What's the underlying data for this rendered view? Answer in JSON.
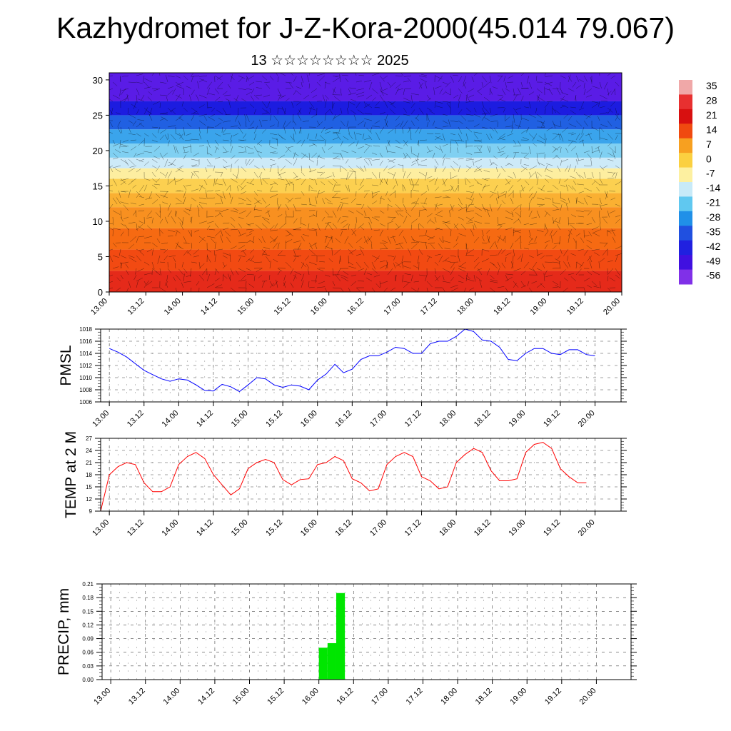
{
  "title": "Kazhydromet for J-Z-Kora-2000(45.014 79.067)",
  "subtitle": "13 ☆☆☆☆☆☆☆☆ 2025",
  "time_ticks": [
    "13.00",
    "13.12",
    "14.00",
    "14.12",
    "15.00",
    "15.12",
    "16.00",
    "16.12",
    "17.00",
    "17.12",
    "18.00",
    "18.12",
    "19.00",
    "19.12",
    "20.00"
  ],
  "chart_data": [
    {
      "type": "heatmap",
      "name": "upper-air temperature cross-section",
      "x_categories": [
        "13.00",
        "13.12",
        "14.00",
        "14.12",
        "15.00",
        "15.12",
        "16.00",
        "16.12",
        "17.00",
        "17.12",
        "18.00",
        "18.12",
        "19.00",
        "19.12",
        "20.00"
      ],
      "y_ticks": [
        0,
        5,
        10,
        15,
        20,
        25,
        30
      ],
      "ylim": [
        0,
        31
      ],
      "colorbar": {
        "labels": [
          "35",
          "28",
          "21",
          "14",
          "7",
          "0",
          "-7",
          "-14",
          "-21",
          "-28",
          "-35",
          "-42",
          "-49",
          "-56"
        ],
        "colors": [
          "#f0a8a8",
          "#e83030",
          "#d81010",
          "#f04a10",
          "#f7a020",
          "#fbd040",
          "#fdf0a0",
          "#c8eaf8",
          "#60c8f0",
          "#2090e8",
          "#2050e0",
          "#2020e0",
          "#4010e0",
          "#8030e8"
        ]
      },
      "bands": [
        {
          "level": 0,
          "color": "#e52a1a"
        },
        {
          "level": 3,
          "color": "#f24a12"
        },
        {
          "level": 6,
          "color": "#f66a12"
        },
        {
          "level": 9,
          "color": "#f89020"
        },
        {
          "level": 12,
          "color": "#fab032"
        },
        {
          "level": 14,
          "color": "#fcd050"
        },
        {
          "level": 16,
          "color": "#fdeea0"
        },
        {
          "level": 17.5,
          "color": "#cdeaf8"
        },
        {
          "level": 19,
          "color": "#80d0f2"
        },
        {
          "level": 21,
          "color": "#3aa4ec"
        },
        {
          "level": 23,
          "color": "#2060e2"
        },
        {
          "level": 25,
          "color": "#1c1ce0"
        },
        {
          "level": 27,
          "color": "#5a1ce6"
        },
        {
          "level": 31,
          "color": "#7a2aea"
        }
      ]
    },
    {
      "type": "line",
      "ylabel": "PMSL",
      "ylim": [
        1006,
        1018
      ],
      "y_ticks": [
        1006,
        1008,
        1010,
        1012,
        1014,
        1016,
        1018
      ],
      "x_ticks": [
        "13.00",
        "13.12",
        "14.00",
        "14.12",
        "15.00",
        "15.12",
        "16.00",
        "16.12",
        "17.00",
        "17.12",
        "18.00",
        "18.12",
        "19.00",
        "19.12",
        "20.00"
      ],
      "x_start_hours": 0,
      "x_step_hours": 3,
      "values": [
        1014.8,
        1014.2,
        1013.4,
        1012.3,
        1011.2,
        1010.5,
        1009.8,
        1009.4,
        1009.8,
        1009.6,
        1008.8,
        1007.9,
        1007.8,
        1008.9,
        1008.5,
        1007.7,
        1008.8,
        1010.0,
        1009.8,
        1008.8,
        1008.4,
        1008.8,
        1008.6,
        1008.0,
        1009.6,
        1010.6,
        1012.2,
        1010.8,
        1011.4,
        1013.0,
        1013.6,
        1013.6,
        1014.2,
        1015.0,
        1014.8,
        1014.0,
        1014.0,
        1015.6,
        1016.0,
        1016.0,
        1016.8,
        1018.0,
        1017.6,
        1016.2,
        1016.0,
        1015.0,
        1013.0,
        1012.8,
        1014.0,
        1014.8,
        1014.8,
        1014.0,
        1013.8,
        1014.6,
        1014.6,
        1013.8,
        1013.6
      ],
      "color": "#0000ff"
    },
    {
      "type": "line",
      "ylabel": "TEMP at 2 M",
      "ylim": [
        9,
        27
      ],
      "y_ticks": [
        9,
        12,
        15,
        18,
        21,
        24,
        27
      ],
      "x_ticks": [
        "13.00",
        "13.12",
        "14.00",
        "14.12",
        "15.00",
        "15.12",
        "16.00",
        "16.12",
        "17.00",
        "17.12",
        "18.00",
        "18.12",
        "19.00",
        "19.12",
        "20.00"
      ],
      "x_start_hours": -3,
      "x_step_hours": 3,
      "values": [
        9.0,
        18.0,
        20.0,
        21.0,
        20.5,
        16.0,
        13.8,
        13.8,
        15.0,
        20.5,
        22.5,
        23.5,
        22.0,
        18.0,
        15.5,
        13.0,
        14.5,
        19.5,
        21.0,
        21.8,
        21.0,
        16.8,
        15.5,
        16.8,
        17.0,
        20.5,
        21.0,
        22.5,
        21.5,
        17.0,
        16.0,
        14.0,
        14.5,
        20.5,
        22.5,
        23.5,
        22.5,
        17.5,
        16.5,
        14.5,
        15.0,
        21.0,
        23.0,
        24.5,
        23.5,
        19.0,
        16.5,
        16.5,
        17.0,
        23.5,
        25.5,
        26.0,
        24.5,
        19.5,
        17.5,
        16.0,
        16.0
      ],
      "color": "#ff0000"
    },
    {
      "type": "bar",
      "ylabel": "PRECIP, mm",
      "ylim": [
        0,
        0.21
      ],
      "y_ticks": [
        "0.00",
        "0.03",
        "0.06",
        "0.09",
        "0.12",
        "0.15",
        "0.18",
        "0.21"
      ],
      "x_ticks": [
        "13.00",
        "13.12",
        "14.00",
        "14.12",
        "15.00",
        "15.12",
        "16.00",
        "16.12",
        "17.00",
        "17.12",
        "18.00",
        "18.12",
        "19.00",
        "19.12",
        "20.00"
      ],
      "bars": [
        {
          "start_hours": 72,
          "end_hours": 75,
          "value": 0.07
        },
        {
          "start_hours": 75,
          "end_hours": 78,
          "value": 0.08
        },
        {
          "start_hours": 78,
          "end_hours": 81,
          "value": 0.19
        }
      ],
      "color": "#00e600"
    }
  ]
}
